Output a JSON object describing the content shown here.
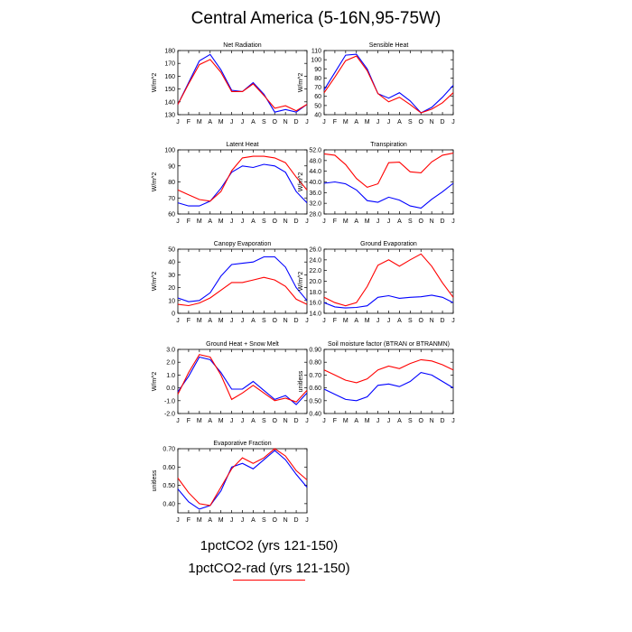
{
  "title": "Central America (5-16N,95-75W)",
  "legend": {
    "line1": "1pctCO2 (yrs 121-150)",
    "line2": "1pctCO2-rad (yrs 121-150)"
  },
  "colors": {
    "series1": "#0000ff",
    "series2": "#ff0000",
    "axis": "#000000"
  },
  "months": [
    "J",
    "F",
    "M",
    "A",
    "M",
    "J",
    "J",
    "A",
    "S",
    "O",
    "N",
    "D",
    "J"
  ],
  "chart_data": [
    {
      "type": "line",
      "title": "Net Radiation",
      "ylabel": "W/m^2",
      "ylim": [
        130,
        180
      ],
      "yticks": [
        130,
        140,
        150,
        160,
        170,
        180
      ],
      "ytick_labels": [
        "130",
        "140",
        "150",
        "160",
        "170",
        "180"
      ],
      "series": [
        {
          "values": [
            138,
            155,
            172,
            177,
            165,
            149,
            148,
            155,
            146,
            132,
            134,
            132,
            138
          ]
        },
        {
          "values": [
            138,
            154,
            169,
            173,
            163,
            148,
            148,
            154,
            145,
            135,
            137,
            133,
            138
          ]
        }
      ]
    },
    {
      "type": "line",
      "title": "Sensible Heat",
      "ylabel": "W/m^2",
      "ylim": [
        40,
        110
      ],
      "yticks": [
        40,
        50,
        60,
        70,
        80,
        90,
        100,
        110
      ],
      "ytick_labels": [
        "40",
        "50",
        "60",
        "70",
        "80",
        "90",
        "100",
        "110"
      ],
      "series": [
        {
          "values": [
            67,
            86,
            105,
            106,
            90,
            63,
            58,
            64,
            55,
            42,
            48,
            59,
            72
          ]
        },
        {
          "values": [
            64,
            81,
            99,
            104,
            88,
            63,
            54,
            59,
            51,
            42,
            46,
            53,
            64
          ]
        }
      ]
    },
    {
      "type": "line",
      "title": "Latent Heat",
      "ylabel": "W/m^2",
      "ylim": [
        60,
        100
      ],
      "yticks": [
        60,
        70,
        80,
        90,
        100
      ],
      "ytick_labels": [
        "60",
        "70",
        "80",
        "90",
        "100"
      ],
      "series": [
        {
          "values": [
            67,
            65,
            65,
            68,
            76,
            86,
            90,
            89,
            91,
            90,
            86,
            74,
            67
          ]
        },
        {
          "values": [
            75,
            72,
            69,
            68,
            74,
            87,
            95,
            96,
            96,
            95,
            92,
            83,
            75
          ]
        }
      ]
    },
    {
      "type": "line",
      "title": "Transpiration",
      "ylabel": "W/m^2",
      "ylim": [
        28,
        52
      ],
      "yticks": [
        28,
        32,
        36,
        40,
        44,
        48,
        52
      ],
      "ytick_labels": [
        "28.0",
        "32.0",
        "36.0",
        "40.0",
        "44.0",
        "48.0",
        "52.0"
      ],
      "series": [
        {
          "values": [
            39.5,
            40,
            39.3,
            37,
            33,
            32.4,
            34.3,
            33.2,
            31,
            30.2,
            33.5,
            36.3,
            39.5
          ]
        },
        {
          "values": [
            50.5,
            50,
            46.5,
            41.3,
            38,
            39.3,
            47.2,
            47.4,
            43.8,
            43.4,
            47.5,
            50,
            50.8
          ]
        }
      ]
    },
    {
      "type": "line",
      "title": "Canopy Evaporation",
      "ylabel": "W/m^2",
      "ylim": [
        0,
        50
      ],
      "yticks": [
        0,
        10,
        20,
        30,
        40,
        50
      ],
      "ytick_labels": [
        "0",
        "10",
        "20",
        "30",
        "40",
        "50"
      ],
      "series": [
        {
          "values": [
            12,
            9,
            10,
            16,
            29,
            38,
            39,
            40,
            44,
            44,
            36,
            20,
            10
          ]
        },
        {
          "values": [
            7,
            6,
            8,
            12,
            18,
            24,
            24,
            26,
            28,
            26,
            21,
            11,
            7
          ]
        }
      ]
    },
    {
      "type": "line",
      "title": "Ground Evaporation",
      "ylabel": "W/m^2",
      "ylim": [
        14,
        26
      ],
      "yticks": [
        14,
        16,
        18,
        20,
        22,
        24,
        26
      ],
      "ytick_labels": [
        "14.0",
        "16.0",
        "18.0",
        "20.0",
        "22.0",
        "24.0",
        "26.0"
      ],
      "series": [
        {
          "values": [
            16,
            15.2,
            15,
            15.1,
            15.4,
            17,
            17.3,
            16.8,
            17,
            17.1,
            17.4,
            17,
            16
          ]
        },
        {
          "values": [
            17,
            16,
            15.4,
            16,
            19,
            23,
            24,
            22.8,
            24,
            25.1,
            22.8,
            19.7,
            17
          ]
        }
      ]
    },
    {
      "type": "line",
      "title": "Ground Heat + Snow Melt",
      "ylabel": "W/m^2",
      "ylim": [
        -2,
        3
      ],
      "yticks": [
        -2,
        -1,
        0,
        1,
        2,
        3
      ],
      "ytick_labels": [
        "-2.0",
        "-1.0",
        "0.0",
        "1.0",
        "2.0",
        "3.0"
      ],
      "series": [
        {
          "values": [
            -0.3,
            0.9,
            2.4,
            2.2,
            1.2,
            -0.1,
            -0.1,
            0.5,
            -0.2,
            -0.9,
            -0.6,
            -1.3,
            -0.4
          ]
        },
        {
          "values": [
            -0.5,
            1.2,
            2.6,
            2.4,
            1.0,
            -0.9,
            -0.4,
            0.2,
            -0.4,
            -1.0,
            -0.8,
            -1.1,
            -0.2
          ]
        }
      ]
    },
    {
      "type": "line",
      "title": "Soil moisture factor (BTRAN or BTRANMN)",
      "ylabel": "unitless",
      "ylim": [
        0.4,
        0.9
      ],
      "yticks": [
        0.4,
        0.5,
        0.6,
        0.7,
        0.8,
        0.9
      ],
      "ytick_labels": [
        "0.40",
        "0.50",
        "0.60",
        "0.70",
        "0.80",
        "0.90"
      ],
      "series": [
        {
          "values": [
            0.59,
            0.55,
            0.51,
            0.5,
            0.53,
            0.62,
            0.63,
            0.61,
            0.65,
            0.72,
            0.7,
            0.65,
            0.6
          ]
        },
        {
          "values": [
            0.74,
            0.7,
            0.66,
            0.64,
            0.67,
            0.74,
            0.77,
            0.75,
            0.79,
            0.82,
            0.81,
            0.78,
            0.74
          ]
        }
      ]
    },
    {
      "type": "line",
      "title": "Evaporative Fraction",
      "ylabel": "unitless",
      "ylim": [
        0.35,
        0.7
      ],
      "yticks": [
        0.4,
        0.5,
        0.6,
        0.7
      ],
      "ytick_labels": [
        "0.40",
        "0.50",
        "0.60",
        "0.70"
      ],
      "series": [
        {
          "values": [
            0.48,
            0.41,
            0.37,
            0.39,
            0.47,
            0.6,
            0.62,
            0.59,
            0.64,
            0.69,
            0.64,
            0.56,
            0.49
          ]
        },
        {
          "values": [
            0.54,
            0.46,
            0.4,
            0.39,
            0.49,
            0.59,
            0.65,
            0.62,
            0.65,
            0.7,
            0.66,
            0.58,
            0.53
          ]
        }
      ]
    }
  ]
}
